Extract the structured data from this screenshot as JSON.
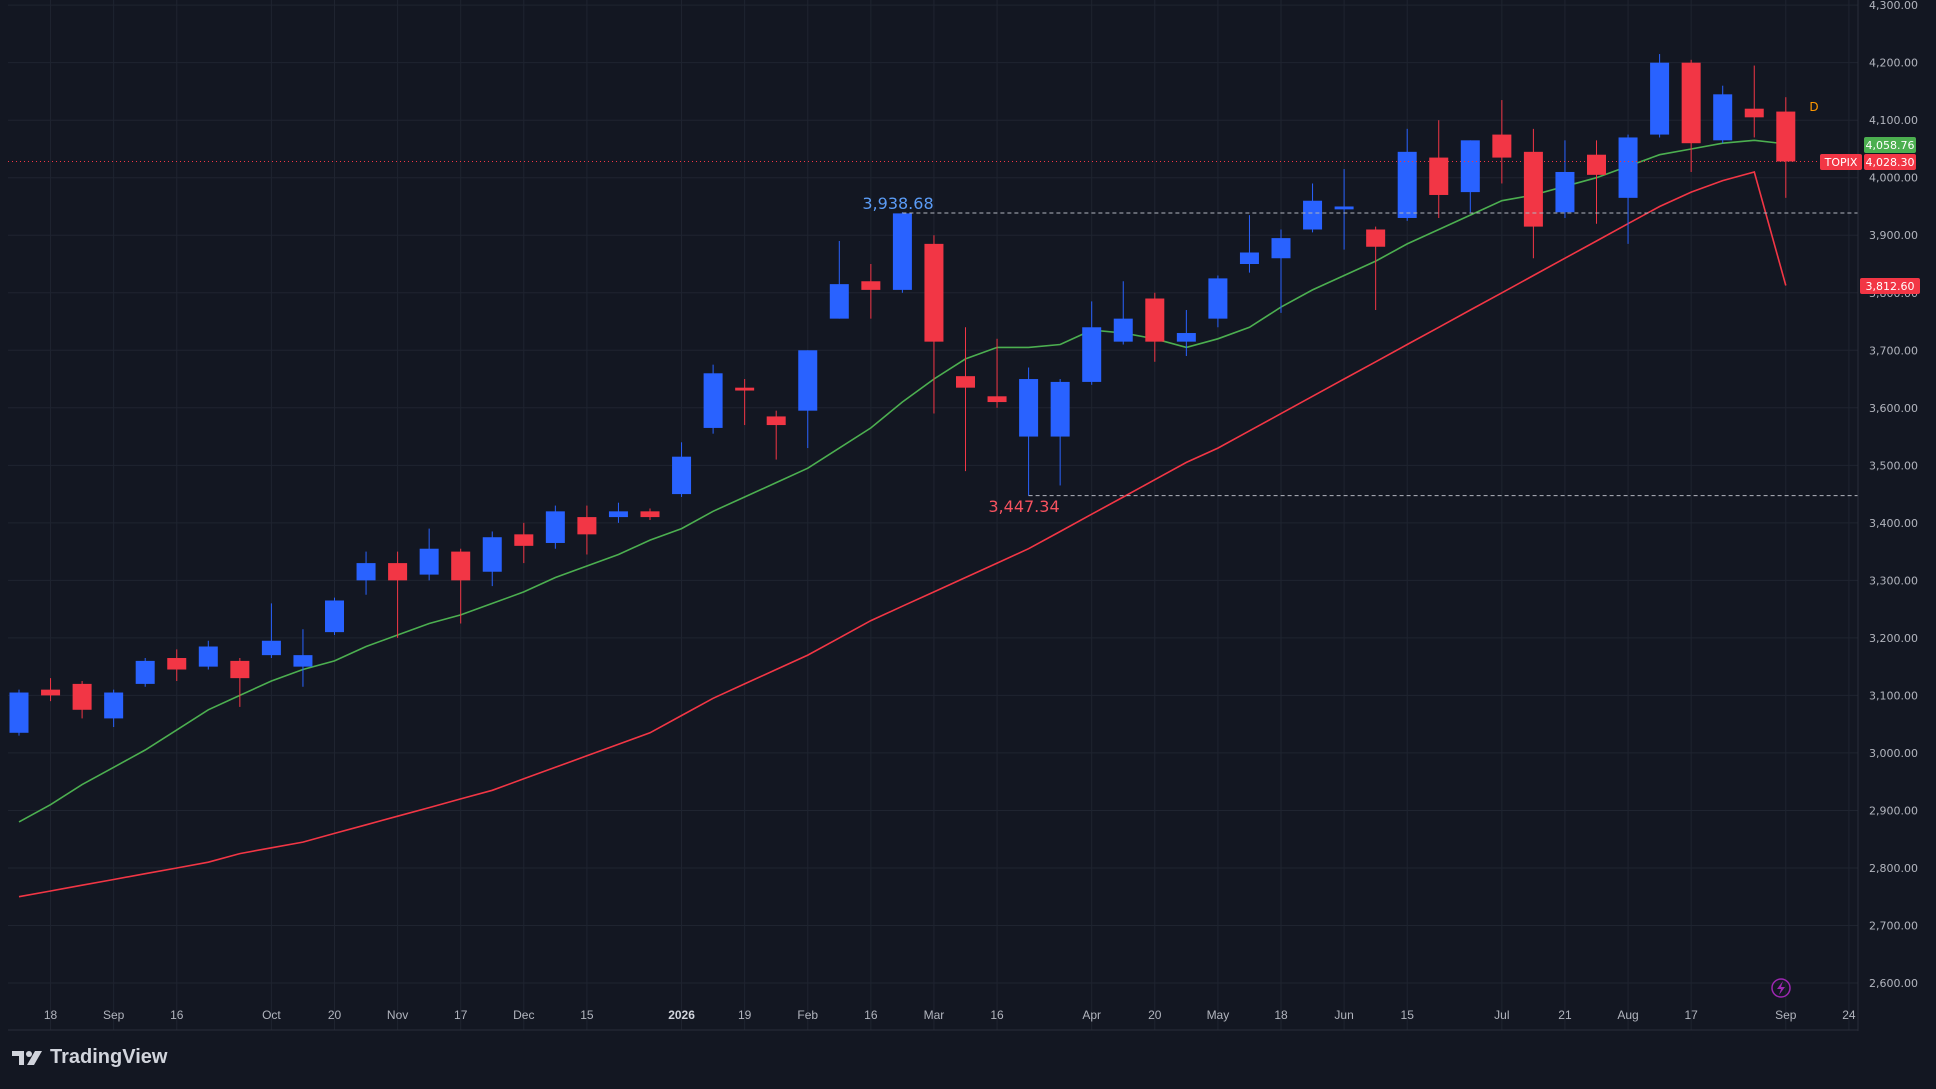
{
  "brand": {
    "name": "TradingView",
    "logo_icon": "tradingview-logo-icon"
  },
  "colors": {
    "background": "#131722",
    "grid": "#1f2430",
    "up": "#2962ff",
    "down": "#f23645",
    "ma_short": "#4caf50",
    "ma_long": "#f23645",
    "text": "#b2b5be"
  },
  "interval_badge": "D",
  "symbol_label": "TOPIX",
  "price_labels": {
    "last": "4,028.30",
    "ma_short": "4,058.76",
    "ma_long": "3,812.60"
  },
  "annotations": {
    "high": "3,938.68",
    "low": "3,447.34"
  },
  "chart_data": {
    "type": "candlestick",
    "y_ticks": [
      "2,600.00",
      "2,700.00",
      "2,800.00",
      "2,900.00",
      "3,000.00",
      "3,100.00",
      "3,200.00",
      "3,300.00",
      "3,400.00",
      "3,500.00",
      "3,600.00",
      "3,700.00",
      "3,800.00",
      "3,900.00",
      "4,000.00",
      "4,100.00",
      "4,200.00",
      "4,300.00"
    ],
    "ylim": [
      2570,
      4300
    ],
    "x_ticks": [
      {
        "label": "18",
        "i": 1
      },
      {
        "label": "Sep",
        "i": 3
      },
      {
        "label": "16",
        "i": 5
      },
      {
        "label": "Oct",
        "i": 8
      },
      {
        "label": "20",
        "i": 10
      },
      {
        "label": "Nov",
        "i": 12
      },
      {
        "label": "17",
        "i": 14
      },
      {
        "label": "Dec",
        "i": 16
      },
      {
        "label": "15",
        "i": 18
      },
      {
        "label": "2026",
        "i": 21,
        "bold": true
      },
      {
        "label": "19",
        "i": 23
      },
      {
        "label": "Feb",
        "i": 25
      },
      {
        "label": "16",
        "i": 27
      },
      {
        "label": "Mar",
        "i": 29
      },
      {
        "label": "16",
        "i": 31
      },
      {
        "label": "Apr",
        "i": 34
      },
      {
        "label": "20",
        "i": 36
      },
      {
        "label": "May",
        "i": 38
      },
      {
        "label": "18",
        "i": 40
      },
      {
        "label": "Jun",
        "i": 42
      },
      {
        "label": "15",
        "i": 44
      },
      {
        "label": "Jul",
        "i": 47
      },
      {
        "label": "21",
        "i": 49
      },
      {
        "label": "Aug",
        "i": 51
      },
      {
        "label": "17",
        "i": 53
      },
      {
        "label": "Sep",
        "i": 56
      },
      {
        "label": "24",
        "i": 58
      }
    ],
    "candles": [
      {
        "o": 3035,
        "h": 3110,
        "l": 3030,
        "c": 3105
      },
      {
        "o": 3110,
        "h": 3130,
        "l": 3090,
        "c": 3100
      },
      {
        "o": 3120,
        "h": 3125,
        "l": 3060,
        "c": 3075
      },
      {
        "o": 3060,
        "h": 3110,
        "l": 3045,
        "c": 3105
      },
      {
        "o": 3120,
        "h": 3165,
        "l": 3115,
        "c": 3160
      },
      {
        "o": 3165,
        "h": 3180,
        "l": 3125,
        "c": 3145
      },
      {
        "o": 3150,
        "h": 3195,
        "l": 3145,
        "c": 3185
      },
      {
        "o": 3160,
        "h": 3165,
        "l": 3080,
        "c": 3130
      },
      {
        "o": 3170,
        "h": 3260,
        "l": 3165,
        "c": 3195
      },
      {
        "o": 3150,
        "h": 3215,
        "l": 3115,
        "c": 3170
      },
      {
        "o": 3210,
        "h": 3270,
        "l": 3205,
        "c": 3265
      },
      {
        "o": 3300,
        "h": 3350,
        "l": 3275,
        "c": 3330
      },
      {
        "o": 3330,
        "h": 3350,
        "l": 3200,
        "c": 3300
      },
      {
        "o": 3310,
        "h": 3390,
        "l": 3300,
        "c": 3355
      },
      {
        "o": 3350,
        "h": 3355,
        "l": 3225,
        "c": 3300
      },
      {
        "o": 3315,
        "h": 3385,
        "l": 3290,
        "c": 3375
      },
      {
        "o": 3380,
        "h": 3400,
        "l": 3330,
        "c": 3360
      },
      {
        "o": 3365,
        "h": 3430,
        "l": 3355,
        "c": 3420
      },
      {
        "o": 3410,
        "h": 3430,
        "l": 3345,
        "c": 3380
      },
      {
        "o": 3410,
        "h": 3435,
        "l": 3400,
        "c": 3420
      },
      {
        "o": 3420,
        "h": 3425,
        "l": 3405,
        "c": 3410
      },
      {
        "o": 3450,
        "h": 3540,
        "l": 3445,
        "c": 3515
      },
      {
        "o": 3565,
        "h": 3675,
        "l": 3555,
        "c": 3660
      },
      {
        "o": 3635,
        "h": 3650,
        "l": 3570,
        "c": 3630
      },
      {
        "o": 3585,
        "h": 3595,
        "l": 3510,
        "c": 3570
      },
      {
        "o": 3595,
        "h": 3700,
        "l": 3530,
        "c": 3700
      },
      {
        "o": 3755,
        "h": 3890,
        "l": 3755,
        "c": 3815
      },
      {
        "o": 3820,
        "h": 3850,
        "l": 3755,
        "c": 3805
      },
      {
        "o": 3805,
        "h": 3940,
        "l": 3800,
        "c": 3938
      },
      {
        "o": 3885,
        "h": 3900,
        "l": 3590,
        "c": 3715
      },
      {
        "o": 3655,
        "h": 3740,
        "l": 3490,
        "c": 3635
      },
      {
        "o": 3620,
        "h": 3720,
        "l": 3600,
        "c": 3610
      },
      {
        "o": 3550,
        "h": 3670,
        "l": 3447,
        "c": 3650
      },
      {
        "o": 3550,
        "h": 3650,
        "l": 3465,
        "c": 3645
      },
      {
        "o": 3645,
        "h": 3785,
        "l": 3640,
        "c": 3740
      },
      {
        "o": 3715,
        "h": 3820,
        "l": 3710,
        "c": 3755
      },
      {
        "o": 3790,
        "h": 3800,
        "l": 3680,
        "c": 3715
      },
      {
        "o": 3715,
        "h": 3770,
        "l": 3690,
        "c": 3730
      },
      {
        "o": 3755,
        "h": 3830,
        "l": 3740,
        "c": 3825
      },
      {
        "o": 3850,
        "h": 3935,
        "l": 3835,
        "c": 3870
      },
      {
        "o": 3860,
        "h": 3910,
        "l": 3765,
        "c": 3895
      },
      {
        "o": 3910,
        "h": 3990,
        "l": 3905,
        "c": 3960
      },
      {
        "o": 3945,
        "h": 4015,
        "l": 3875,
        "c": 3950
      },
      {
        "o": 3910,
        "h": 3915,
        "l": 3770,
        "c": 3880
      },
      {
        "o": 3930,
        "h": 4085,
        "l": 3925,
        "c": 4045
      },
      {
        "o": 4035,
        "h": 4100,
        "l": 3930,
        "c": 3970
      },
      {
        "o": 3975,
        "h": 4065,
        "l": 3940,
        "c": 4065
      },
      {
        "o": 4075,
        "h": 4135,
        "l": 3990,
        "c": 4035
      },
      {
        "o": 4045,
        "h": 4085,
        "l": 3860,
        "c": 3915
      },
      {
        "o": 3940,
        "h": 4065,
        "l": 3930,
        "c": 4010
      },
      {
        "o": 4040,
        "h": 4065,
        "l": 3920,
        "c": 4005
      },
      {
        "o": 3965,
        "h": 4075,
        "l": 3885,
        "c": 4070
      },
      {
        "o": 4075,
        "h": 4215,
        "l": 4070,
        "c": 4200
      },
      {
        "o": 4200,
        "h": 4205,
        "l": 4010,
        "c": 4060
      },
      {
        "o": 4065,
        "h": 4160,
        "l": 4060,
        "c": 4145
      },
      {
        "o": 4120,
        "h": 4195,
        "l": 4070,
        "c": 4105
      },
      {
        "o": 4115,
        "h": 4140,
        "l": 3965,
        "c": 4028.3
      }
    ],
    "series": [
      {
        "values": [
          2880,
          2910,
          2945,
          2975,
          3005,
          3040,
          3075,
          3100,
          3125,
          3145,
          3160,
          3185,
          3205,
          3225,
          3240,
          3260,
          3280,
          3305,
          3325,
          3345,
          3370,
          3390,
          3420,
          3445,
          3470,
          3495,
          3530,
          3565,
          3610,
          3650,
          3685,
          3705,
          3705,
          3710,
          3735,
          3730,
          3720,
          3705,
          3720,
          3740,
          3775,
          3805,
          3830,
          3855,
          3885,
          3910,
          3935,
          3960,
          3970,
          3985,
          4000,
          4020,
          4040,
          4050,
          4060,
          4065,
          4058.76
        ]
      },
      {
        "values": [
          2750,
          2760,
          2770,
          2780,
          2790,
          2800,
          2810,
          2825,
          2835,
          2845,
          2860,
          2875,
          2890,
          2905,
          2920,
          2935,
          2955,
          2975,
          2995,
          3015,
          3035,
          3065,
          3095,
          3120,
          3145,
          3170,
          3200,
          3230,
          3255,
          3280,
          3305,
          3330,
          3355,
          3385,
          3415,
          3445,
          3475,
          3505,
          3530,
          3560,
          3590,
          3620,
          3650,
          3680,
          3710,
          3740,
          3770,
          3800,
          3830,
          3860,
          3890,
          3920,
          3950,
          3975,
          3995,
          4010,
          3812.6
        ]
      }
    ]
  }
}
